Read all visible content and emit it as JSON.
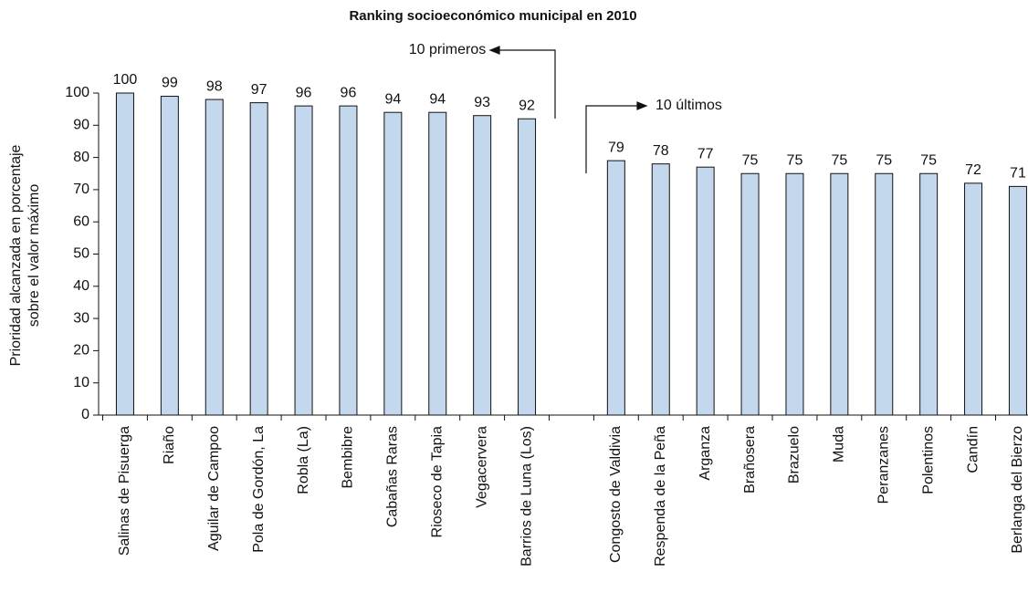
{
  "chart_data": {
    "type": "bar",
    "title": "Ranking socioeconómico municipal en 2010",
    "y_label": [
      "Prioridad alcanzada en porcentaje",
      "sobre el valor máximo"
    ],
    "annotations": [
      "10 primeros",
      "10 últimos"
    ],
    "categories": [
      "Salinas de  Pisuerga",
      "Riaño",
      "Aguilar de Campoo",
      "Pola de Gordón, La",
      "Robla (La)",
      "Bembibre",
      "Cabañas Raras",
      "Rioseco de Tapia",
      "Vegacervera",
      "Barrios de Luna (Los)",
      null,
      "Congosto de Valdivia",
      "Respenda de la Peña",
      "Arganza",
      "Brañosera",
      "Brazuelo",
      "Muda",
      "Peranzanes",
      "Polentinos",
      "Candín",
      "Berlanga del Bierzo"
    ],
    "values": [
      100,
      99,
      98,
      97,
      96,
      96,
      94,
      94,
      93,
      92,
      null,
      79,
      78,
      77,
      75,
      75,
      75,
      75,
      75,
      72,
      71
    ],
    "color": "#c3d8ec",
    "ylim": [
      0,
      100
    ],
    "yticks": [
      0,
      10,
      20,
      30,
      40,
      50,
      60,
      70,
      80,
      90,
      100
    ],
    "grid": false
  }
}
